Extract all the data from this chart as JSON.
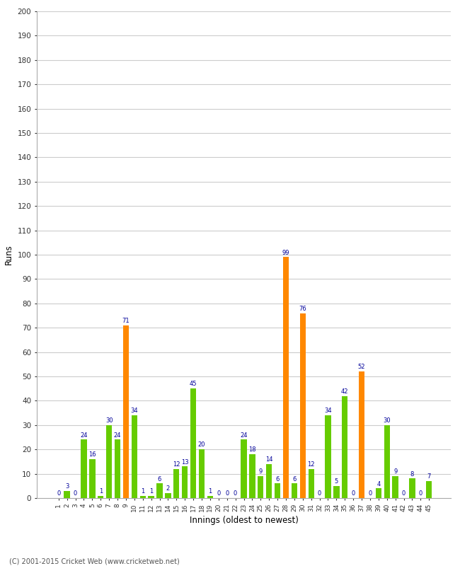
{
  "innings": [
    1,
    2,
    3,
    4,
    5,
    6,
    7,
    8,
    9,
    10,
    11,
    12,
    13,
    14,
    15,
    16,
    17,
    18,
    19,
    20,
    21,
    22,
    23,
    24,
    25,
    26,
    27,
    28,
    29,
    30,
    31,
    32,
    33,
    34,
    35,
    36,
    37,
    38,
    39,
    40,
    41,
    42,
    43,
    44,
    45
  ],
  "values": [
    0,
    3,
    0,
    24,
    16,
    1,
    30,
    24,
    71,
    34,
    1,
    1,
    6,
    2,
    12,
    13,
    45,
    20,
    1,
    0,
    0,
    0,
    24,
    18,
    9,
    14,
    6,
    99,
    6,
    76,
    12,
    0,
    34,
    5,
    42,
    0,
    52,
    0,
    4,
    30,
    9,
    0,
    8,
    0,
    7
  ],
  "colors": [
    "#66cc00",
    "#66cc00",
    "#66cc00",
    "#66cc00",
    "#66cc00",
    "#66cc00",
    "#66cc00",
    "#66cc00",
    "#ff8800",
    "#66cc00",
    "#66cc00",
    "#66cc00",
    "#66cc00",
    "#66cc00",
    "#66cc00",
    "#66cc00",
    "#66cc00",
    "#66cc00",
    "#66cc00",
    "#66cc00",
    "#66cc00",
    "#66cc00",
    "#66cc00",
    "#66cc00",
    "#66cc00",
    "#66cc00",
    "#66cc00",
    "#ff8800",
    "#66cc00",
    "#ff8800",
    "#66cc00",
    "#66cc00",
    "#66cc00",
    "#66cc00",
    "#66cc00",
    "#66cc00",
    "#ff8800",
    "#66cc00",
    "#66cc00",
    "#66cc00",
    "#66cc00",
    "#66cc00",
    "#66cc00",
    "#66cc00",
    "#66cc00"
  ],
  "xlabel": "Innings (oldest to newest)",
  "ylabel": "Runs",
  "ylim": [
    0,
    200
  ],
  "yticks": [
    0,
    10,
    20,
    30,
    40,
    50,
    60,
    70,
    80,
    90,
    100,
    110,
    120,
    130,
    140,
    150,
    160,
    170,
    180,
    190,
    200
  ],
  "label_color": "#000099",
  "background_color": "#ffffff",
  "grid_color": "#cccccc",
  "footer": "(C) 2001-2015 Cricket Web (www.cricketweb.net)"
}
